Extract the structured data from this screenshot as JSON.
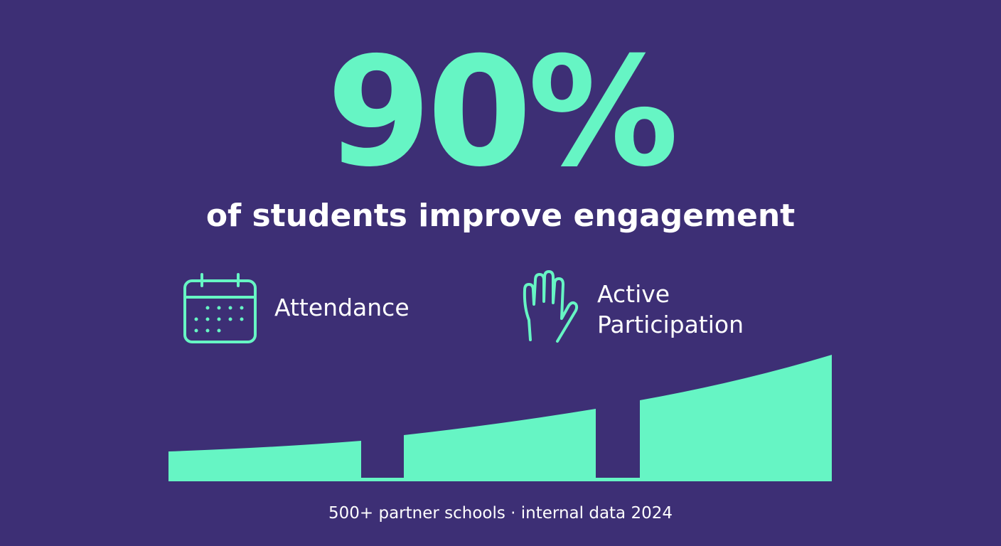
{
  "headline": {
    "stat": "90%",
    "caption": "of students improve engagement"
  },
  "features": [
    {
      "label": "Attendance"
    },
    {
      "label": "Active Participation"
    }
  ],
  "footer": "500+ partner schools · internal data 2024"
}
